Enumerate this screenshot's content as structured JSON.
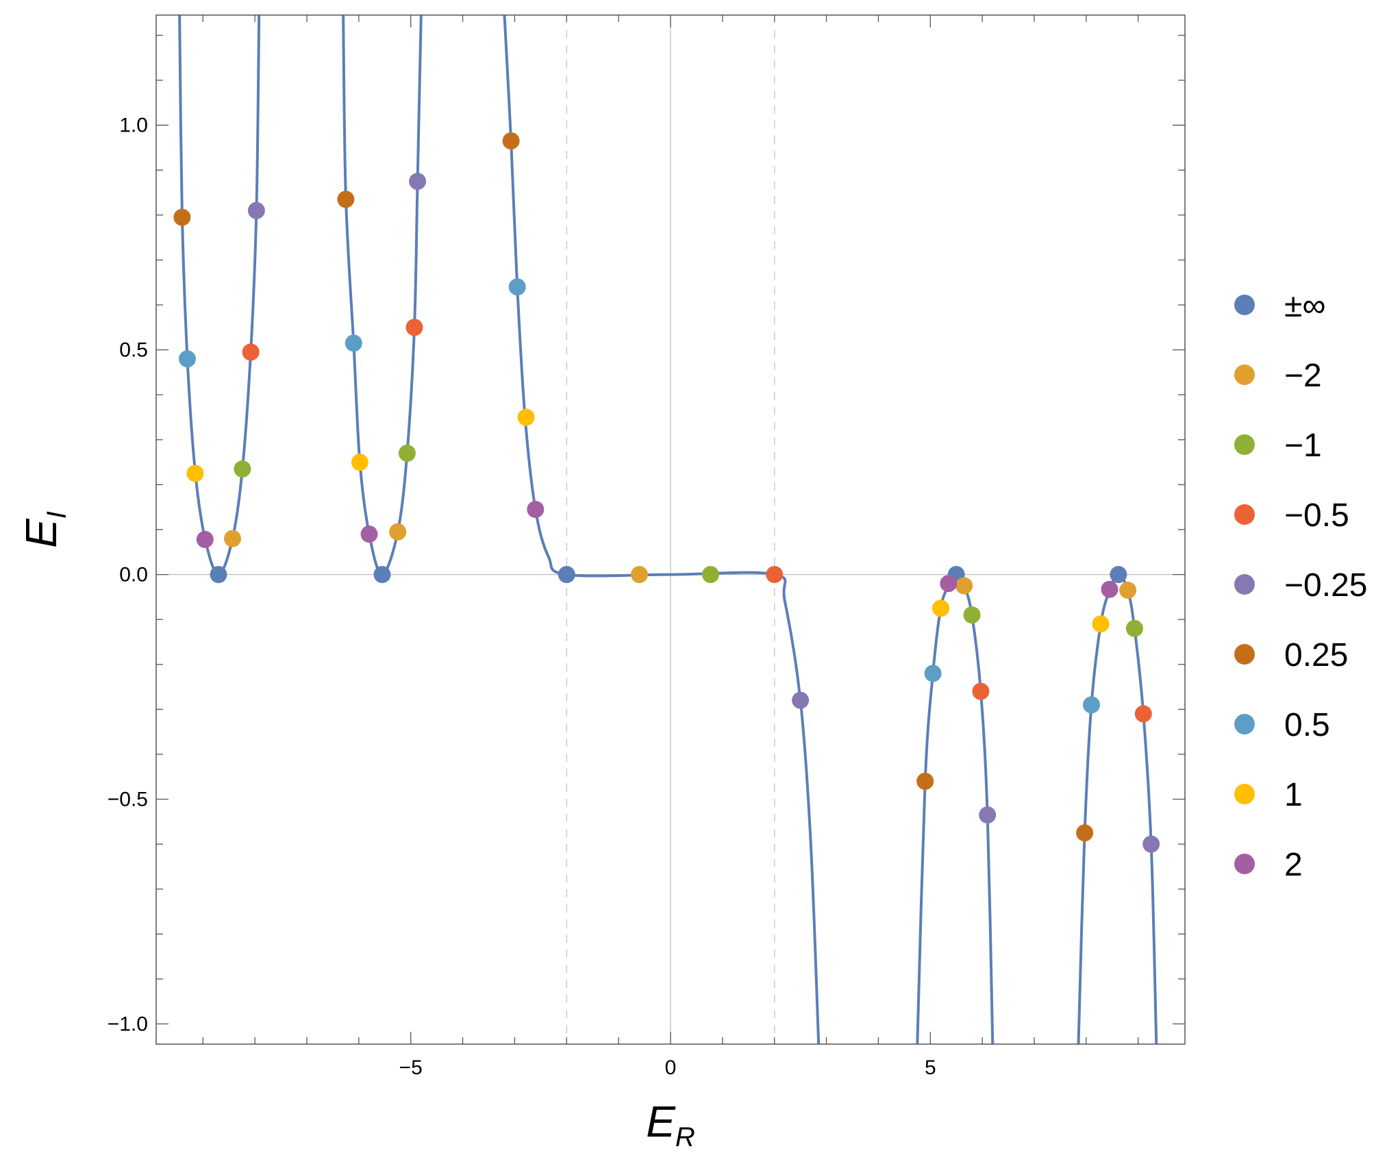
{
  "chart_data": {
    "type": "scatter",
    "xlabel": {
      "main": "E",
      "sub": "R"
    },
    "ylabel": {
      "main": "E",
      "sub": "I"
    },
    "xlim": [
      -9.9,
      9.9
    ],
    "ylim": [
      -1.045,
      1.245
    ],
    "x_ticks": [
      {
        "value": -5,
        "label": "−5"
      },
      {
        "value": 0,
        "label": "0"
      },
      {
        "value": 5,
        "label": "5"
      }
    ],
    "y_ticks": [
      {
        "value": -1.0,
        "label": "−1.0"
      },
      {
        "value": -0.5,
        "label": "−0.5"
      },
      {
        "value": 0.0,
        "label": "0.0"
      },
      {
        "value": 0.5,
        "label": "0.5"
      },
      {
        "value": 1.0,
        "label": "1.0"
      }
    ],
    "reference_lines": {
      "vertical_dashed": [
        -2,
        2
      ],
      "zero_lines": true
    },
    "curve_color": "#5b7fb6",
    "curve_branches": [
      [
        [
          -9.45,
          1.25
        ],
        [
          -9.4,
          0.8
        ],
        [
          -9.3,
          0.48
        ],
        [
          -9.15,
          0.23
        ],
        [
          -8.96,
          0.08
        ],
        [
          -8.7,
          0.0
        ],
        [
          -8.43,
          0.08
        ],
        [
          -8.24,
          0.235
        ],
        [
          -8.08,
          0.495
        ],
        [
          -7.97,
          0.81
        ],
        [
          -7.92,
          1.25
        ]
      ],
      [
        [
          -6.3,
          1.25
        ],
        [
          -6.25,
          0.84
        ],
        [
          -6.1,
          0.515
        ],
        [
          -5.98,
          0.25
        ],
        [
          -5.8,
          0.09
        ],
        [
          -5.55,
          0.0
        ],
        [
          -5.25,
          0.095
        ],
        [
          -5.07,
          0.27
        ],
        [
          -4.93,
          0.55
        ],
        [
          -4.87,
          0.875
        ],
        [
          -4.8,
          1.25
        ]
      ],
      [
        [
          -3.2,
          1.25
        ],
        [
          -3.07,
          0.965
        ],
        [
          -2.95,
          0.64
        ],
        [
          -2.8,
          0.35
        ],
        [
          -2.6,
          0.145
        ],
        [
          -2.35,
          0.04
        ],
        [
          -2.0,
          0.0
        ],
        [
          0.0,
          0.0
        ],
        [
          2.0,
          0.0
        ],
        [
          2.2,
          -0.06
        ],
        [
          2.5,
          -0.28
        ],
        [
          2.7,
          -0.6
        ],
        [
          2.85,
          -1.045
        ]
      ],
      [
        [
          4.75,
          -1.045
        ],
        [
          4.9,
          -0.46
        ],
        [
          5.05,
          -0.22
        ],
        [
          5.2,
          -0.075
        ],
        [
          5.35,
          -0.025
        ],
        [
          5.5,
          0.0
        ],
        [
          5.65,
          -0.025
        ],
        [
          5.8,
          -0.09
        ],
        [
          5.97,
          -0.26
        ],
        [
          6.1,
          -0.535
        ],
        [
          6.2,
          -1.045
        ]
      ],
      [
        [
          7.85,
          -1.045
        ],
        [
          7.97,
          -0.575
        ],
        [
          8.1,
          -0.29
        ],
        [
          8.28,
          -0.11
        ],
        [
          8.45,
          -0.035
        ],
        [
          8.62,
          0.0
        ],
        [
          8.8,
          -0.035
        ],
        [
          8.93,
          -0.12
        ],
        [
          9.1,
          -0.31
        ],
        [
          9.25,
          -0.6
        ],
        [
          9.35,
          -1.045
        ]
      ]
    ],
    "series": [
      {
        "name": "±∞",
        "color": "#5b7fb6",
        "points": [
          [
            -8.7,
            0.0
          ],
          [
            -5.55,
            0.0
          ],
          [
            -2.0,
            0.0
          ],
          [
            5.5,
            0.0
          ],
          [
            8.62,
            0.0
          ]
        ]
      },
      {
        "name": "−2",
        "color": "#e0a030",
        "points": [
          [
            -8.43,
            0.08
          ],
          [
            -5.25,
            0.095
          ],
          [
            -0.6,
            0.0
          ],
          [
            5.65,
            -0.025
          ],
          [
            8.8,
            -0.035
          ]
        ]
      },
      {
        "name": "−1",
        "color": "#8fb034",
        "points": [
          [
            -8.24,
            0.235
          ],
          [
            -5.07,
            0.27
          ],
          [
            0.77,
            0.0
          ],
          [
            5.8,
            -0.09
          ],
          [
            8.93,
            -0.12
          ]
        ]
      },
      {
        "name": "−0.5",
        "color": "#eb6235",
        "points": [
          [
            -8.08,
            0.495
          ],
          [
            -4.93,
            0.55
          ],
          [
            2.0,
            0.0
          ],
          [
            5.97,
            -0.26
          ],
          [
            9.1,
            -0.31
          ]
        ]
      },
      {
        "name": "−0.25",
        "color": "#8778b3",
        "points": [
          [
            -7.97,
            0.81
          ],
          [
            -4.87,
            0.875
          ],
          [
            2.5,
            -0.28
          ],
          [
            6.1,
            -0.535
          ],
          [
            9.25,
            -0.6
          ]
        ]
      },
      {
        "name": "0.25",
        "color": "#c56e1a",
        "points": [
          [
            -9.4,
            0.795
          ],
          [
            -6.25,
            0.835
          ],
          [
            -3.07,
            0.965
          ],
          [
            4.9,
            -0.46
          ],
          [
            7.97,
            -0.575
          ]
        ]
      },
      {
        "name": "0.5",
        "color": "#5d9ec7",
        "points": [
          [
            -9.3,
            0.48
          ],
          [
            -6.1,
            0.515
          ],
          [
            -2.95,
            0.64
          ],
          [
            5.05,
            -0.22
          ],
          [
            8.1,
            -0.29
          ]
        ]
      },
      {
        "name": "1",
        "color": "#ffbf00",
        "points": [
          [
            -9.15,
            0.225
          ],
          [
            -5.98,
            0.25
          ],
          [
            -2.78,
            0.35
          ],
          [
            5.2,
            -0.075
          ],
          [
            8.28,
            -0.11
          ]
        ]
      },
      {
        "name": "2",
        "color": "#a45ea2",
        "points": [
          [
            -8.96,
            0.078
          ],
          [
            -5.8,
            0.09
          ],
          [
            -2.6,
            0.145
          ],
          [
            5.35,
            -0.02
          ],
          [
            8.45,
            -0.033
          ]
        ]
      }
    ],
    "legend_position": "right",
    "grid": false
  }
}
